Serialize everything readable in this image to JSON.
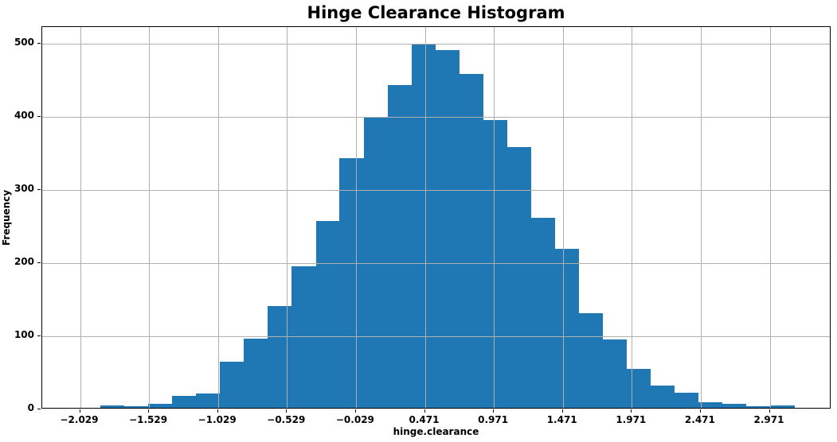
{
  "chart_data": {
    "type": "histogram",
    "title": "Hinge Clearance Histogram",
    "xlabel": "hinge.clearance",
    "ylabel": "Frequency",
    "grid": true,
    "legend": false,
    "bar_color": "#1f77b4",
    "grid_color": "#b0b0b0",
    "spine_color": "#000000",
    "xlim": [
      -2.3033,
      3.4182
    ],
    "ylim": [
      0,
      522.8
    ],
    "bin_edges": [
      -1.882,
      -1.708,
      -1.535,
      -1.361,
      -1.188,
      -1.014,
      -0.841,
      -0.667,
      -0.494,
      -0.32,
      -0.147,
      0.027,
      0.2,
      0.374,
      0.547,
      0.721,
      0.894,
      1.068,
      1.241,
      1.415,
      1.588,
      1.762,
      1.935,
      2.109,
      2.282,
      2.456,
      2.629,
      2.803,
      2.976,
      3.15
    ],
    "counts": [
      3,
      2,
      5,
      16,
      20,
      63,
      95,
      139,
      193,
      255,
      341,
      398,
      441,
      497,
      489,
      457,
      393,
      357,
      260,
      217,
      129,
      93,
      53,
      31,
      21,
      8,
      5,
      2,
      3
    ],
    "xticks": {
      "values": [
        -2.029,
        -1.529,
        -1.029,
        -0.529,
        -0.029,
        0.471,
        0.971,
        1.471,
        1.971,
        2.471,
        2.971
      ],
      "labels": [
        "−2.029",
        "−1.529",
        "−1.029",
        "−0.529",
        "−0.029",
        "0.471",
        "0.971",
        "1.471",
        "1.971",
        "2.471",
        "2.971"
      ]
    },
    "yticks": {
      "values": [
        0,
        100,
        200,
        300,
        400,
        500
      ],
      "labels": [
        "0",
        "100",
        "200",
        "300",
        "400",
        "500"
      ]
    }
  }
}
